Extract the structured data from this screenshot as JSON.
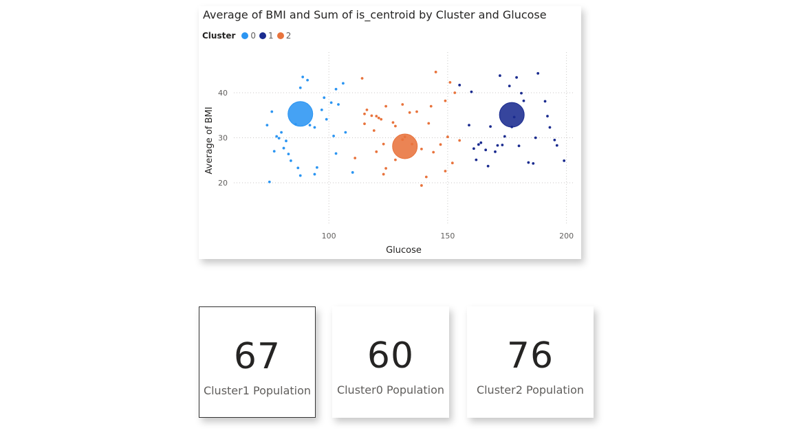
{
  "chart": {
    "title": "Average of BMI and Sum of is_centroid by Cluster and Glucose",
    "legend_title": "Cluster",
    "legend": [
      {
        "label": "0",
        "color": "#2b95f2"
      },
      {
        "label": "1",
        "color": "#1a2b8f"
      },
      {
        "label": "2",
        "color": "#e8733c"
      }
    ]
  },
  "chart_data": {
    "type": "scatter",
    "title": "Average of BMI and Sum of is_centroid by Cluster and Glucose",
    "xlabel": "Glucose",
    "ylabel": "Average of BMI",
    "xlim": [
      60,
      203
    ],
    "ylim": [
      11,
      49
    ],
    "x_ticks": [
      100,
      150,
      200
    ],
    "y_ticks": [
      20,
      30,
      40
    ],
    "legend_placement": "top-left",
    "grid": true,
    "series": [
      {
        "name": "0",
        "color": "#2b95f2",
        "points": [
          [
            89,
            43.5
          ],
          [
            91,
            42.8
          ],
          [
            88,
            41.1
          ],
          [
            98,
            38.9
          ],
          [
            101,
            37.8
          ],
          [
            104,
            37.4
          ],
          [
            106,
            42.1
          ],
          [
            103,
            40.8
          ],
          [
            76,
            35.8
          ],
          [
            74,
            32.8
          ],
          [
            86,
            33.0
          ],
          [
            92,
            32.8
          ],
          [
            94,
            32.3
          ],
          [
            97,
            36.2
          ],
          [
            99,
            34.1
          ],
          [
            80,
            31.2
          ],
          [
            78,
            30.3
          ],
          [
            79,
            29.9
          ],
          [
            82,
            29.3
          ],
          [
            102,
            30.4
          ],
          [
            107,
            31.2
          ],
          [
            81,
            27.7
          ],
          [
            77,
            27.0
          ],
          [
            83,
            26.4
          ],
          [
            103,
            26.5
          ],
          [
            84,
            24.9
          ],
          [
            87,
            23.3
          ],
          [
            95,
            23.4
          ],
          [
            75,
            20.2
          ],
          [
            88,
            21.6
          ],
          [
            94,
            21.9
          ],
          [
            110,
            22.3
          ]
        ]
      },
      {
        "name": "1",
        "color": "#1a2b8f",
        "points": [
          [
            155,
            41.7
          ],
          [
            160,
            40.2
          ],
          [
            172,
            43.8
          ],
          [
            176,
            41.5
          ],
          [
            179,
            43.4
          ],
          [
            188,
            44.3
          ],
          [
            181,
            39.9
          ],
          [
            182,
            38.2
          ],
          [
            191,
            38.1
          ],
          [
            192,
            34.8
          ],
          [
            178,
            34.6
          ],
          [
            159,
            32.8
          ],
          [
            168,
            32.5
          ],
          [
            177,
            32.4
          ],
          [
            193,
            32.3
          ],
          [
            174,
            30.3
          ],
          [
            187,
            30.0
          ],
          [
            195,
            29.5
          ],
          [
            164,
            28.9
          ],
          [
            163,
            28.5
          ],
          [
            171,
            28.3
          ],
          [
            173,
            28.4
          ],
          [
            180,
            28.2
          ],
          [
            196,
            28.3
          ],
          [
            161,
            27.6
          ],
          [
            166,
            27.3
          ],
          [
            170,
            26.9
          ],
          [
            162,
            25.1
          ],
          [
            184,
            24.5
          ],
          [
            186,
            24.3
          ],
          [
            199,
            24.9
          ],
          [
            167,
            23.7
          ]
        ]
      },
      {
        "name": "2",
        "color": "#e8733c",
        "points": [
          [
            145,
            44.6
          ],
          [
            114,
            43.2
          ],
          [
            151,
            42.3
          ],
          [
            153,
            40.0
          ],
          [
            149,
            38.2
          ],
          [
            131,
            37.4
          ],
          [
            124,
            37.0
          ],
          [
            143,
            37.0
          ],
          [
            116,
            36.2
          ],
          [
            115,
            35.3
          ],
          [
            137,
            35.8
          ],
          [
            134,
            35.6
          ],
          [
            118,
            34.9
          ],
          [
            120,
            34.8
          ],
          [
            121,
            34.4
          ],
          [
            122,
            34.1
          ],
          [
            127,
            33.4
          ],
          [
            142,
            33.2
          ],
          [
            115,
            33.1
          ],
          [
            128,
            32.6
          ],
          [
            119,
            31.6
          ],
          [
            132,
            30.2
          ],
          [
            150,
            30.2
          ],
          [
            131,
            29.6
          ],
          [
            155,
            29.4
          ],
          [
            123,
            28.6
          ],
          [
            135,
            28.6
          ],
          [
            147,
            28.5
          ],
          [
            139,
            27.5
          ],
          [
            120,
            26.9
          ],
          [
            144,
            26.8
          ],
          [
            111,
            25.5
          ],
          [
            128,
            25.1
          ],
          [
            152,
            24.4
          ],
          [
            124,
            23.2
          ],
          [
            149,
            22.6
          ],
          [
            123,
            21.9
          ],
          [
            141,
            21.3
          ],
          [
            139,
            19.4
          ]
        ]
      }
    ],
    "centroids": [
      {
        "cluster": "0",
        "x": 88,
        "y": 35.3
      },
      {
        "cluster": "1",
        "x": 177,
        "y": 35.1
      },
      {
        "cluster": "2",
        "x": 132,
        "y": 28.1
      }
    ]
  },
  "cards": [
    {
      "value": "67",
      "label": "Cluster1 Population"
    },
    {
      "value": "60",
      "label": "Cluster0 Population"
    },
    {
      "value": "76",
      "label": "Cluster2 Population"
    }
  ]
}
